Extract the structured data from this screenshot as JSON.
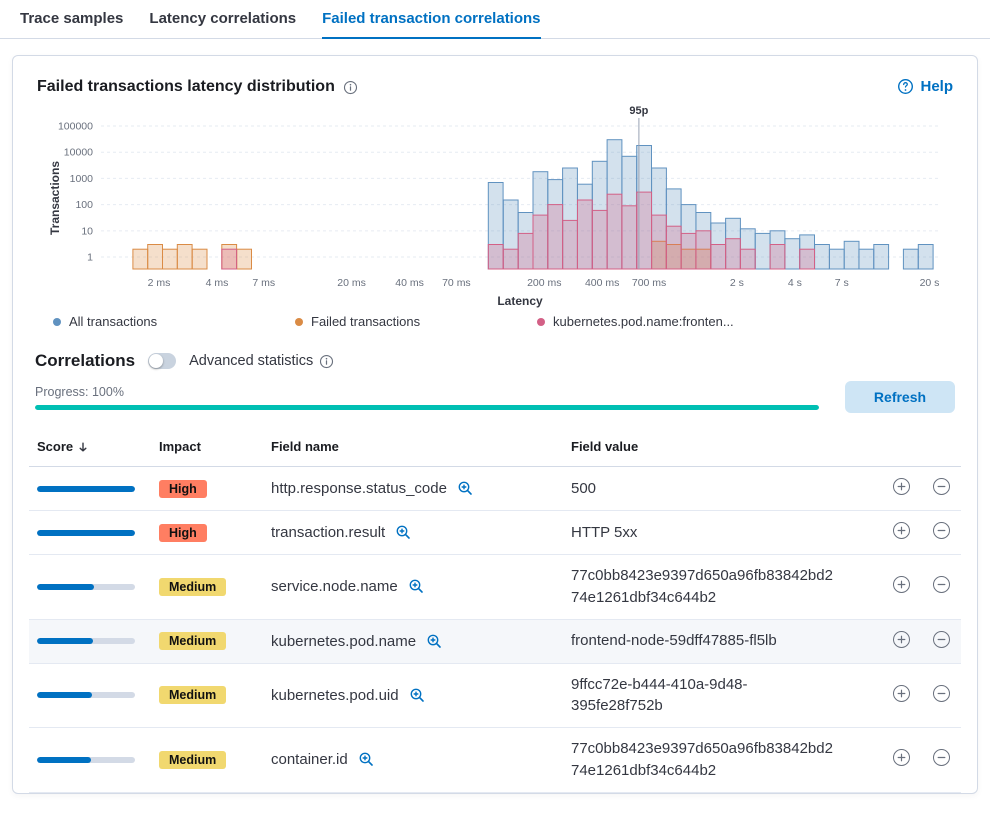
{
  "tabs": [
    {
      "label": "Trace samples",
      "active": false
    },
    {
      "label": "Latency correlations",
      "active": false
    },
    {
      "label": "Failed transaction correlations",
      "active": true
    }
  ],
  "panel": {
    "title": "Failed transactions latency distribution",
    "help_label": "Help"
  },
  "chart_data": {
    "type": "bar",
    "subtype": "histogram",
    "title": "Failed transactions latency distribution",
    "xlabel": "Latency",
    "ylabel": "Transactions",
    "x_scale": "log",
    "y_scale": "log",
    "x_domain_ms": [
      1,
      22400
    ],
    "y_domain": [
      1,
      100000
    ],
    "y_baseline": 0.35,
    "grid": true,
    "legend_position": "bottom",
    "y_ticks": [
      1,
      10,
      100,
      1000,
      10000,
      100000
    ],
    "x_ticks": [
      {
        "ms": 2,
        "label": "2 ms"
      },
      {
        "ms": 4,
        "label": "4 ms"
      },
      {
        "ms": 7,
        "label": "7 ms"
      },
      {
        "ms": 20,
        "label": "20 ms"
      },
      {
        "ms": 40,
        "label": "40 ms"
      },
      {
        "ms": 70,
        "label": "70 ms"
      },
      {
        "ms": 200,
        "label": "200 ms"
      },
      {
        "ms": 400,
        "label": "400 ms"
      },
      {
        "ms": 700,
        "label": "700 ms"
      },
      {
        "ms": 2000,
        "label": "2 s"
      },
      {
        "ms": 4000,
        "label": "4 s"
      },
      {
        "ms": 7000,
        "label": "7 s"
      },
      {
        "ms": 20000,
        "label": "20 s"
      }
    ],
    "annotation": {
      "label": "95p",
      "ms": 620
    },
    "x_ms": [
      1.6,
      1.91,
      2.28,
      2.72,
      3.25,
      3.88,
      4.63,
      5.53,
      6.6,
      7.88,
      9.4,
      11.2,
      13.4,
      16,
      19.1,
      22.8,
      27.2,
      32.5,
      38.8,
      46.3,
      55.3,
      66,
      78.8,
      94,
      112,
      134,
      160,
      191,
      228,
      272,
      325,
      388,
      463,
      553,
      660,
      788,
      940,
      1122,
      1340,
      1600,
      1910,
      2280,
      2720,
      3250,
      3880,
      4630,
      5530,
      6600,
      7880,
      9400,
      11220,
      13400,
      16000,
      19100
    ],
    "series": [
      {
        "name": "All transactions",
        "color": "#6092C0",
        "values": [
          0,
          0,
          0,
          0,
          0,
          0,
          0,
          0,
          0,
          0,
          0,
          0,
          0,
          0,
          0,
          0,
          0,
          0,
          0,
          0,
          0,
          0,
          0,
          0,
          700,
          150,
          50,
          1800,
          900,
          2500,
          600,
          4500,
          30000,
          7000,
          18000,
          2500,
          400,
          100,
          50,
          20,
          30,
          12,
          8,
          10,
          5,
          7,
          3,
          2,
          4,
          2,
          3,
          0,
          2,
          3
        ]
      },
      {
        "name": "Failed transactions",
        "color": "#DA8B45",
        "values": [
          2,
          3,
          2,
          3,
          2,
          0,
          3,
          2,
          0,
          0,
          0,
          0,
          0,
          0,
          0,
          0,
          0,
          0,
          0,
          0,
          0,
          0,
          0,
          0,
          0,
          0,
          0,
          0,
          0,
          0,
          0,
          0,
          0,
          0,
          0,
          4,
          3,
          2,
          2,
          0,
          0,
          0,
          0,
          0,
          0,
          0,
          0,
          0,
          0,
          0,
          0,
          0,
          0,
          0
        ]
      },
      {
        "name": "kubernetes.pod.name:fronten...",
        "color": "#D36086",
        "values": [
          0,
          0,
          0,
          0,
          0,
          0,
          2,
          0,
          0,
          0,
          0,
          0,
          0,
          0,
          0,
          0,
          0,
          0,
          0,
          0,
          0,
          0,
          0,
          0,
          3,
          2,
          8,
          40,
          100,
          25,
          150,
          60,
          250,
          90,
          300,
          40,
          15,
          8,
          10,
          3,
          5,
          2,
          0,
          3,
          0,
          2,
          0,
          0,
          0,
          0,
          0,
          0,
          0,
          0
        ]
      }
    ]
  },
  "correlations": {
    "title": "Correlations",
    "toggle_label": "Advanced statistics",
    "toggle_on": false,
    "progress_label": "Progress: 100%",
    "progress_pct": 100,
    "progress_color": "#00BFB3",
    "refresh_label": "Refresh"
  },
  "table": {
    "columns": [
      "Score",
      "Impact",
      "Field name",
      "Field value"
    ],
    "sort": {
      "column": "Score",
      "direction": "desc"
    },
    "score_bar_color": "#0071C2",
    "rows": [
      {
        "score_pct": 100,
        "impact": "High",
        "impact_color": "#FF7E62",
        "field_name": "http.response.status_code",
        "field_value": "500",
        "highlight": false
      },
      {
        "score_pct": 100,
        "impact": "High",
        "impact_color": "#FF7E62",
        "field_name": "transaction.result",
        "field_value": "HTTP 5xx",
        "highlight": false
      },
      {
        "score_pct": 58,
        "impact": "Medium",
        "impact_color": "#F1D86F",
        "field_name": "service.node.name",
        "field_value": "77c0bb8423e9397d650a96fb83842bd274e1261dbf34c644b2",
        "highlight": false
      },
      {
        "score_pct": 57,
        "impact": "Medium",
        "impact_color": "#F1D86F",
        "field_name": "kubernetes.pod.name",
        "field_value": "frontend-node-59dff47885-fl5lb",
        "highlight": true
      },
      {
        "score_pct": 56,
        "impact": "Medium",
        "impact_color": "#F1D86F",
        "field_name": "kubernetes.pod.uid",
        "field_value": "9ffcc72e-b444-410a-9d48-395fe28f752b",
        "highlight": false
      },
      {
        "score_pct": 55,
        "impact": "Medium",
        "impact_color": "#F1D86F",
        "field_name": "container.id",
        "field_value": "77c0bb8423e9397d650a96fb83842bd274e1261dbf34c644b2",
        "highlight": false
      }
    ]
  }
}
